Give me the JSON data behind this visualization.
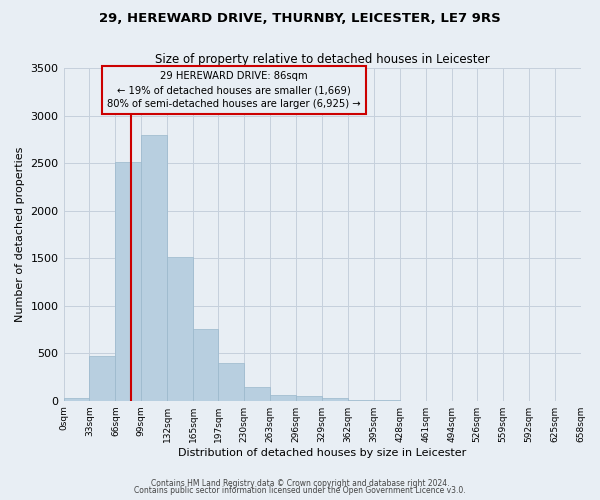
{
  "title_line1": "29, HEREWARD DRIVE, THURNBY, LEICESTER, LE7 9RS",
  "title_line2": "Size of property relative to detached houses in Leicester",
  "xlabel": "Distribution of detached houses by size in Leicester",
  "ylabel": "Number of detached properties",
  "bar_color": "#b8cfe0",
  "bar_edge_color": "#9ab8cc",
  "bin_edges": [
    0,
    33,
    66,
    99,
    132,
    165,
    197,
    230,
    263,
    296,
    329,
    362,
    395,
    428,
    461,
    494,
    526,
    559,
    592,
    625,
    658
  ],
  "bar_heights": [
    25,
    470,
    2510,
    2800,
    1510,
    750,
    400,
    145,
    65,
    45,
    25,
    8,
    3,
    0,
    0,
    0,
    0,
    0,
    0,
    0
  ],
  "tick_labels": [
    "0sqm",
    "33sqm",
    "66sqm",
    "99sqm",
    "132sqm",
    "165sqm",
    "197sqm",
    "230sqm",
    "263sqm",
    "296sqm",
    "329sqm",
    "362sqm",
    "395sqm",
    "428sqm",
    "461sqm",
    "494sqm",
    "526sqm",
    "559sqm",
    "592sqm",
    "625sqm",
    "658sqm"
  ],
  "property_size": 86,
  "property_line_color": "#cc0000",
  "annotation_text_line1": "29 HEREWARD DRIVE: 86sqm",
  "annotation_text_line2": "← 19% of detached houses are smaller (1,669)",
  "annotation_text_line3": "80% of semi-detached houses are larger (6,925) →",
  "annotation_box_edge": "#cc0000",
  "ylim": [
    0,
    3500
  ],
  "yticks": [
    0,
    500,
    1000,
    1500,
    2000,
    2500,
    3000,
    3500
  ],
  "footer_line1": "Contains HM Land Registry data © Crown copyright and database right 2024.",
  "footer_line2": "Contains public sector information licensed under the Open Government Licence v3.0.",
  "background_color": "#e8eef4",
  "plot_bg_color": "#e8eef4",
  "grid_color": "#c5d0dc"
}
